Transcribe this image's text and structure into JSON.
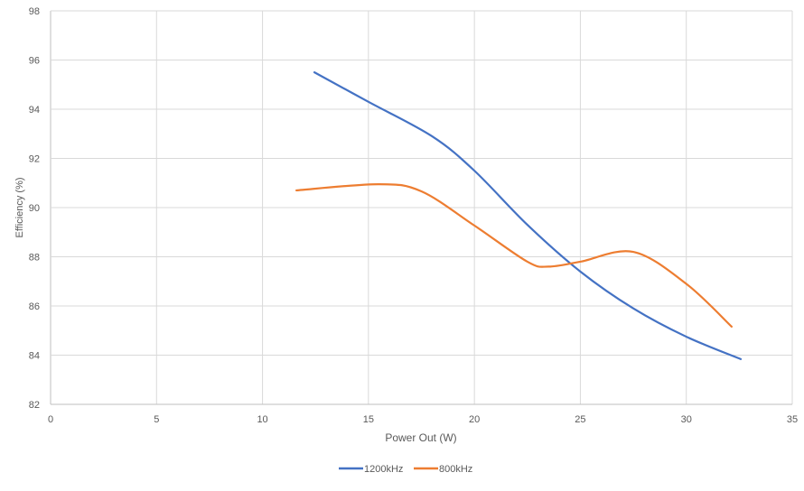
{
  "chart_data": {
    "type": "line",
    "title": "",
    "xlabel": "Power Out (W)",
    "ylabel": "Efficiency (%)",
    "xlim": [
      0,
      35
    ],
    "ylim": [
      82,
      98
    ],
    "xticks": [
      0,
      5,
      10,
      15,
      20,
      25,
      30,
      35
    ],
    "yticks": [
      82,
      84,
      86,
      88,
      90,
      92,
      94,
      96,
      98
    ],
    "grid": true,
    "legend_position": "bottom",
    "series": [
      {
        "name": "1200kHz",
        "color": "#4472C4",
        "x": [
          12.45,
          15,
          18,
          20,
          22.5,
          25,
          27.5,
          30,
          32.57
        ],
        "y": [
          95.5,
          94.3,
          92.9,
          91.5,
          89.3,
          87.4,
          85.9,
          84.75,
          83.84
        ]
      },
      {
        "name": "800kHz",
        "color": "#ED7D31",
        "x": [
          11.6,
          15.5,
          17.5,
          20,
          22.5,
          23.5,
          25,
          27.5,
          30,
          32.14
        ],
        "y": [
          90.7,
          90.95,
          90.66,
          89.27,
          87.8,
          87.6,
          87.8,
          88.2,
          86.9,
          85.16
        ]
      }
    ]
  }
}
